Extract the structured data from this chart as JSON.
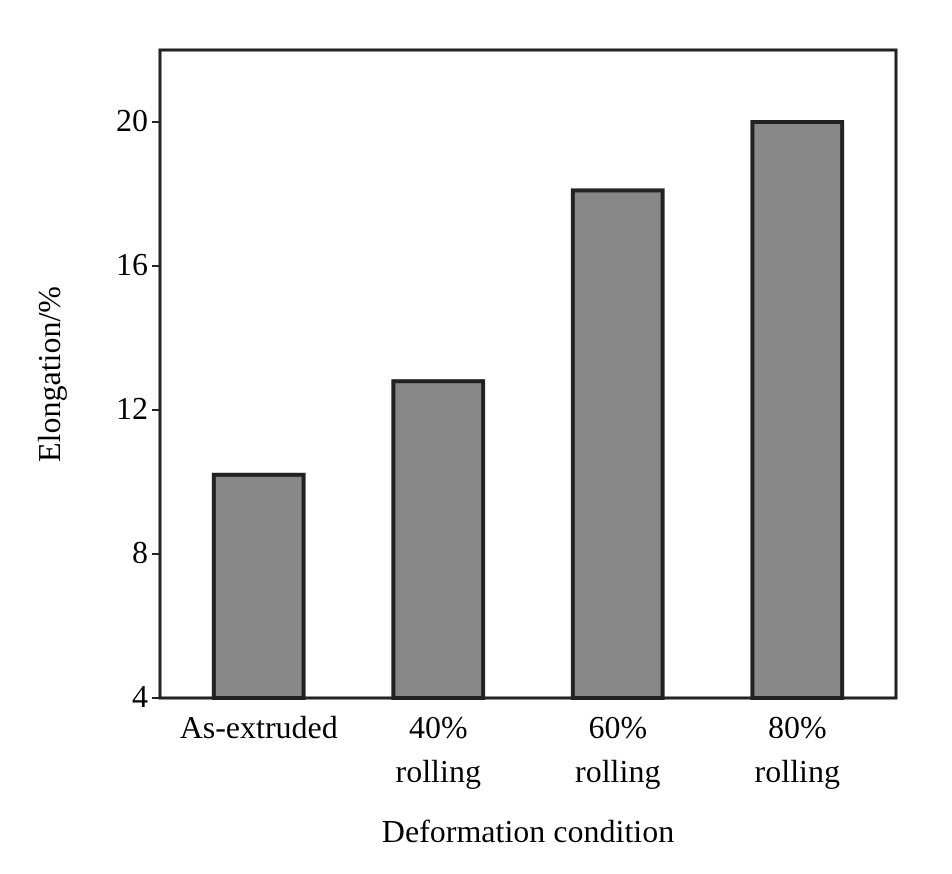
{
  "chart_data": {
    "type": "bar",
    "xlabel": "Deformation condition",
    "ylabel": "Elongation/%",
    "categories": [
      "As-extruded",
      "40% rolling",
      "60% rolling",
      "80% rolling"
    ],
    "values": [
      10.2,
      12.8,
      18.1,
      20.0
    ],
    "color": "#888888",
    "ylim": [
      4,
      22
    ],
    "yticks": [
      4,
      8,
      12,
      16,
      20
    ],
    "grid": false
  }
}
